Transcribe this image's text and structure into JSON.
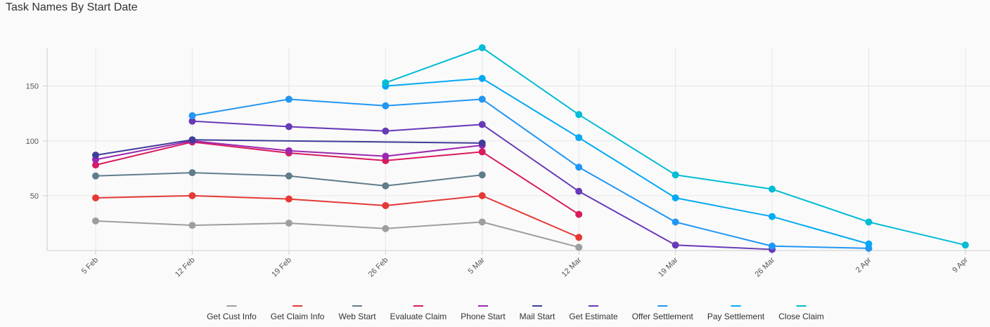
{
  "chart_data": {
    "type": "line",
    "title": "Task Names By Start Date",
    "xlabel": "",
    "ylabel": "",
    "x": [
      "5 Feb",
      "12 Feb",
      "19 Feb",
      "26 Feb",
      "5 Mar",
      "12 Mar",
      "19 Mar",
      "26 Mar",
      "2 Apr",
      "9 Apr"
    ],
    "yticks": [
      50,
      100,
      150
    ],
    "ylim": [
      0,
      185
    ],
    "grid": true,
    "legend": "bottom-center",
    "series": [
      {
        "name": "Get Cust Info",
        "color": "#9e9e9e",
        "values": [
          27,
          23,
          25,
          20,
          26,
          3,
          null,
          null,
          null,
          null
        ]
      },
      {
        "name": "Get Claim Info",
        "color": "#e53935",
        "values": [
          48,
          50,
          47,
          41,
          50,
          12,
          null,
          null,
          null,
          null
        ]
      },
      {
        "name": "Web Start",
        "color": "#607d8b",
        "values": [
          68,
          71,
          68,
          59,
          69,
          null,
          null,
          null,
          null,
          null
        ]
      },
      {
        "name": "Evaluate Claim",
        "color": "#d81b60",
        "values": [
          78,
          99,
          89,
          82,
          90,
          33,
          null,
          null,
          null,
          null
        ]
      },
      {
        "name": "Phone Start",
        "color": "#9c27b0",
        "values": [
          83,
          100,
          91,
          86,
          96,
          null,
          null,
          null,
          null,
          null
        ]
      },
      {
        "name": "Mail Start",
        "color": "#3f3d99",
        "values": [
          87,
          101,
          null,
          null,
          98,
          null,
          null,
          null,
          null,
          null
        ]
      },
      {
        "name": "Get Estimate",
        "color": "#673ab7",
        "values": [
          null,
          118,
          113,
          109,
          115,
          54,
          5,
          1,
          null,
          null
        ]
      },
      {
        "name": "Offer Settlement",
        "color": "#2196f3",
        "values": [
          null,
          123,
          138,
          132,
          138,
          76,
          26,
          4,
          2,
          null
        ]
      },
      {
        "name": "Pay Settlement",
        "color": "#03a9f4",
        "values": [
          null,
          null,
          null,
          150,
          157,
          103,
          48,
          31,
          6,
          null
        ]
      },
      {
        "name": "Close Claim",
        "color": "#00bcd4",
        "values": [
          null,
          null,
          null,
          153,
          185,
          124,
          69,
          56,
          26,
          5
        ]
      }
    ]
  }
}
